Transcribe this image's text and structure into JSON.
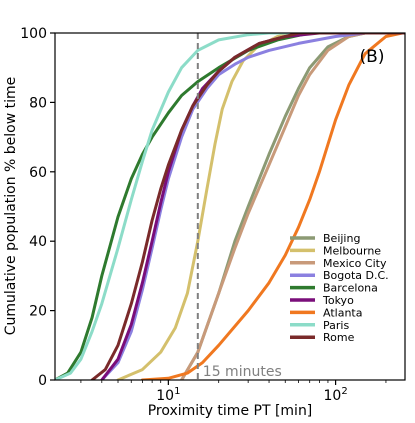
{
  "chart_data": {
    "type": "line",
    "panel_label": "(B)",
    "xlabel": "Proximity time PT  [min]",
    "ylabel": "Cumulative population % below time",
    "xscale": "log",
    "xlim": [
      2.1,
      260
    ],
    "ylim": [
      0,
      100
    ],
    "x_ticks": [
      10,
      100
    ],
    "x_tick_labels": [
      "10^1",
      "10^2"
    ],
    "y_ticks": [
      0,
      20,
      40,
      60,
      80,
      100
    ],
    "y_tick_labels": [
      "0",
      "20",
      "40",
      "60",
      "80",
      "100"
    ],
    "grid": false,
    "legend_position": "lower-right",
    "reference_line": {
      "x": 15,
      "label": "15 minutes",
      "color": "#808080"
    },
    "series": [
      {
        "name": "Beijing",
        "color": "#8c9a74",
        "points": [
          [
            12,
            0
          ],
          [
            15,
            8
          ],
          [
            20,
            25
          ],
          [
            25,
            40
          ],
          [
            30,
            50
          ],
          [
            40,
            65
          ],
          [
            50,
            76
          ],
          [
            60,
            84
          ],
          [
            70,
            90
          ],
          [
            90,
            96
          ],
          [
            120,
            99
          ],
          [
            150,
            100
          ]
        ]
      },
      {
        "name": "Melbourne",
        "color": "#d4c06c",
        "points": [
          [
            5,
            0
          ],
          [
            7,
            3
          ],
          [
            9,
            8
          ],
          [
            11,
            15
          ],
          [
            13,
            25
          ],
          [
            15,
            40
          ],
          [
            17,
            55
          ],
          [
            19,
            68
          ],
          [
            21,
            78
          ],
          [
            24,
            86
          ],
          [
            28,
            92
          ],
          [
            34,
            96
          ],
          [
            45,
            99
          ],
          [
            60,
            100
          ]
        ]
      },
      {
        "name": "Mexico City",
        "color": "#c89a7a",
        "points": [
          [
            12,
            0
          ],
          [
            15,
            8
          ],
          [
            20,
            25
          ],
          [
            25,
            38
          ],
          [
            30,
            48
          ],
          [
            40,
            62
          ],
          [
            50,
            73
          ],
          [
            60,
            82
          ],
          [
            70,
            88
          ],
          [
            90,
            95
          ],
          [
            120,
            99
          ],
          [
            150,
            100
          ]
        ]
      },
      {
        "name": "Bogota D.C.",
        "color": "#8b80e0",
        "points": [
          [
            4,
            0
          ],
          [
            5,
            5
          ],
          [
            6,
            14
          ],
          [
            7,
            26
          ],
          [
            8,
            38
          ],
          [
            9,
            49
          ],
          [
            10,
            58
          ],
          [
            12,
            70
          ],
          [
            14,
            78
          ],
          [
            17,
            84
          ],
          [
            20,
            88
          ],
          [
            25,
            91
          ],
          [
            30,
            93
          ],
          [
            40,
            95
          ],
          [
            60,
            97
          ],
          [
            100,
            99
          ],
          [
            150,
            100
          ]
        ]
      },
      {
        "name": "Barcelona",
        "color": "#2e7a2e",
        "points": [
          [
            2.1,
            0
          ],
          [
            2.5,
            2
          ],
          [
            3,
            8
          ],
          [
            3.5,
            18
          ],
          [
            4,
            30
          ],
          [
            5,
            47
          ],
          [
            6,
            58
          ],
          [
            7,
            65
          ],
          [
            8,
            70
          ],
          [
            10,
            77
          ],
          [
            12,
            82
          ],
          [
            15,
            86
          ],
          [
            20,
            90
          ],
          [
            30,
            95
          ],
          [
            45,
            98
          ],
          [
            70,
            100
          ]
        ]
      },
      {
        "name": "Tokyo",
        "color": "#7a0e7a",
        "points": [
          [
            4,
            0
          ],
          [
            5,
            6
          ],
          [
            6,
            16
          ],
          [
            7,
            28
          ],
          [
            8,
            40
          ],
          [
            9,
            51
          ],
          [
            10,
            60
          ],
          [
            12,
            72
          ],
          [
            14,
            79
          ],
          [
            16,
            84
          ],
          [
            20,
            89
          ],
          [
            25,
            93
          ],
          [
            35,
            97
          ],
          [
            50,
            99
          ],
          [
            80,
            100
          ]
        ]
      },
      {
        "name": "Atlanta",
        "color": "#f07820",
        "points": [
          [
            7,
            0
          ],
          [
            10,
            0.5
          ],
          [
            13,
            2
          ],
          [
            16,
            5
          ],
          [
            20,
            10
          ],
          [
            30,
            20
          ],
          [
            40,
            28
          ],
          [
            50,
            36
          ],
          [
            60,
            44
          ],
          [
            70,
            52
          ],
          [
            80,
            60
          ],
          [
            100,
            75
          ],
          [
            120,
            85
          ],
          [
            150,
            94
          ],
          [
            200,
            99
          ],
          [
            250,
            100
          ]
        ]
      },
      {
        "name": "Paris",
        "color": "#8cdcc8",
        "points": [
          [
            2.1,
            0
          ],
          [
            2.6,
            2
          ],
          [
            3,
            6
          ],
          [
            3.5,
            14
          ],
          [
            4,
            22
          ],
          [
            5,
            38
          ],
          [
            6,
            52
          ],
          [
            7,
            63
          ],
          [
            8,
            72
          ],
          [
            10,
            83
          ],
          [
            12,
            90
          ],
          [
            15,
            95
          ],
          [
            20,
            98
          ],
          [
            30,
            99.5
          ],
          [
            40,
            100
          ]
        ]
      },
      {
        "name": "Rome",
        "color": "#7a2a2a",
        "points": [
          [
            3.5,
            0
          ],
          [
            4.2,
            3
          ],
          [
            5,
            10
          ],
          [
            6,
            22
          ],
          [
            7,
            34
          ],
          [
            8,
            46
          ],
          [
            9,
            55
          ],
          [
            10,
            62
          ],
          [
            12,
            72
          ],
          [
            14,
            79
          ],
          [
            17,
            85
          ],
          [
            20,
            89
          ],
          [
            25,
            93
          ],
          [
            35,
            97
          ],
          [
            60,
            100
          ]
        ]
      }
    ]
  }
}
